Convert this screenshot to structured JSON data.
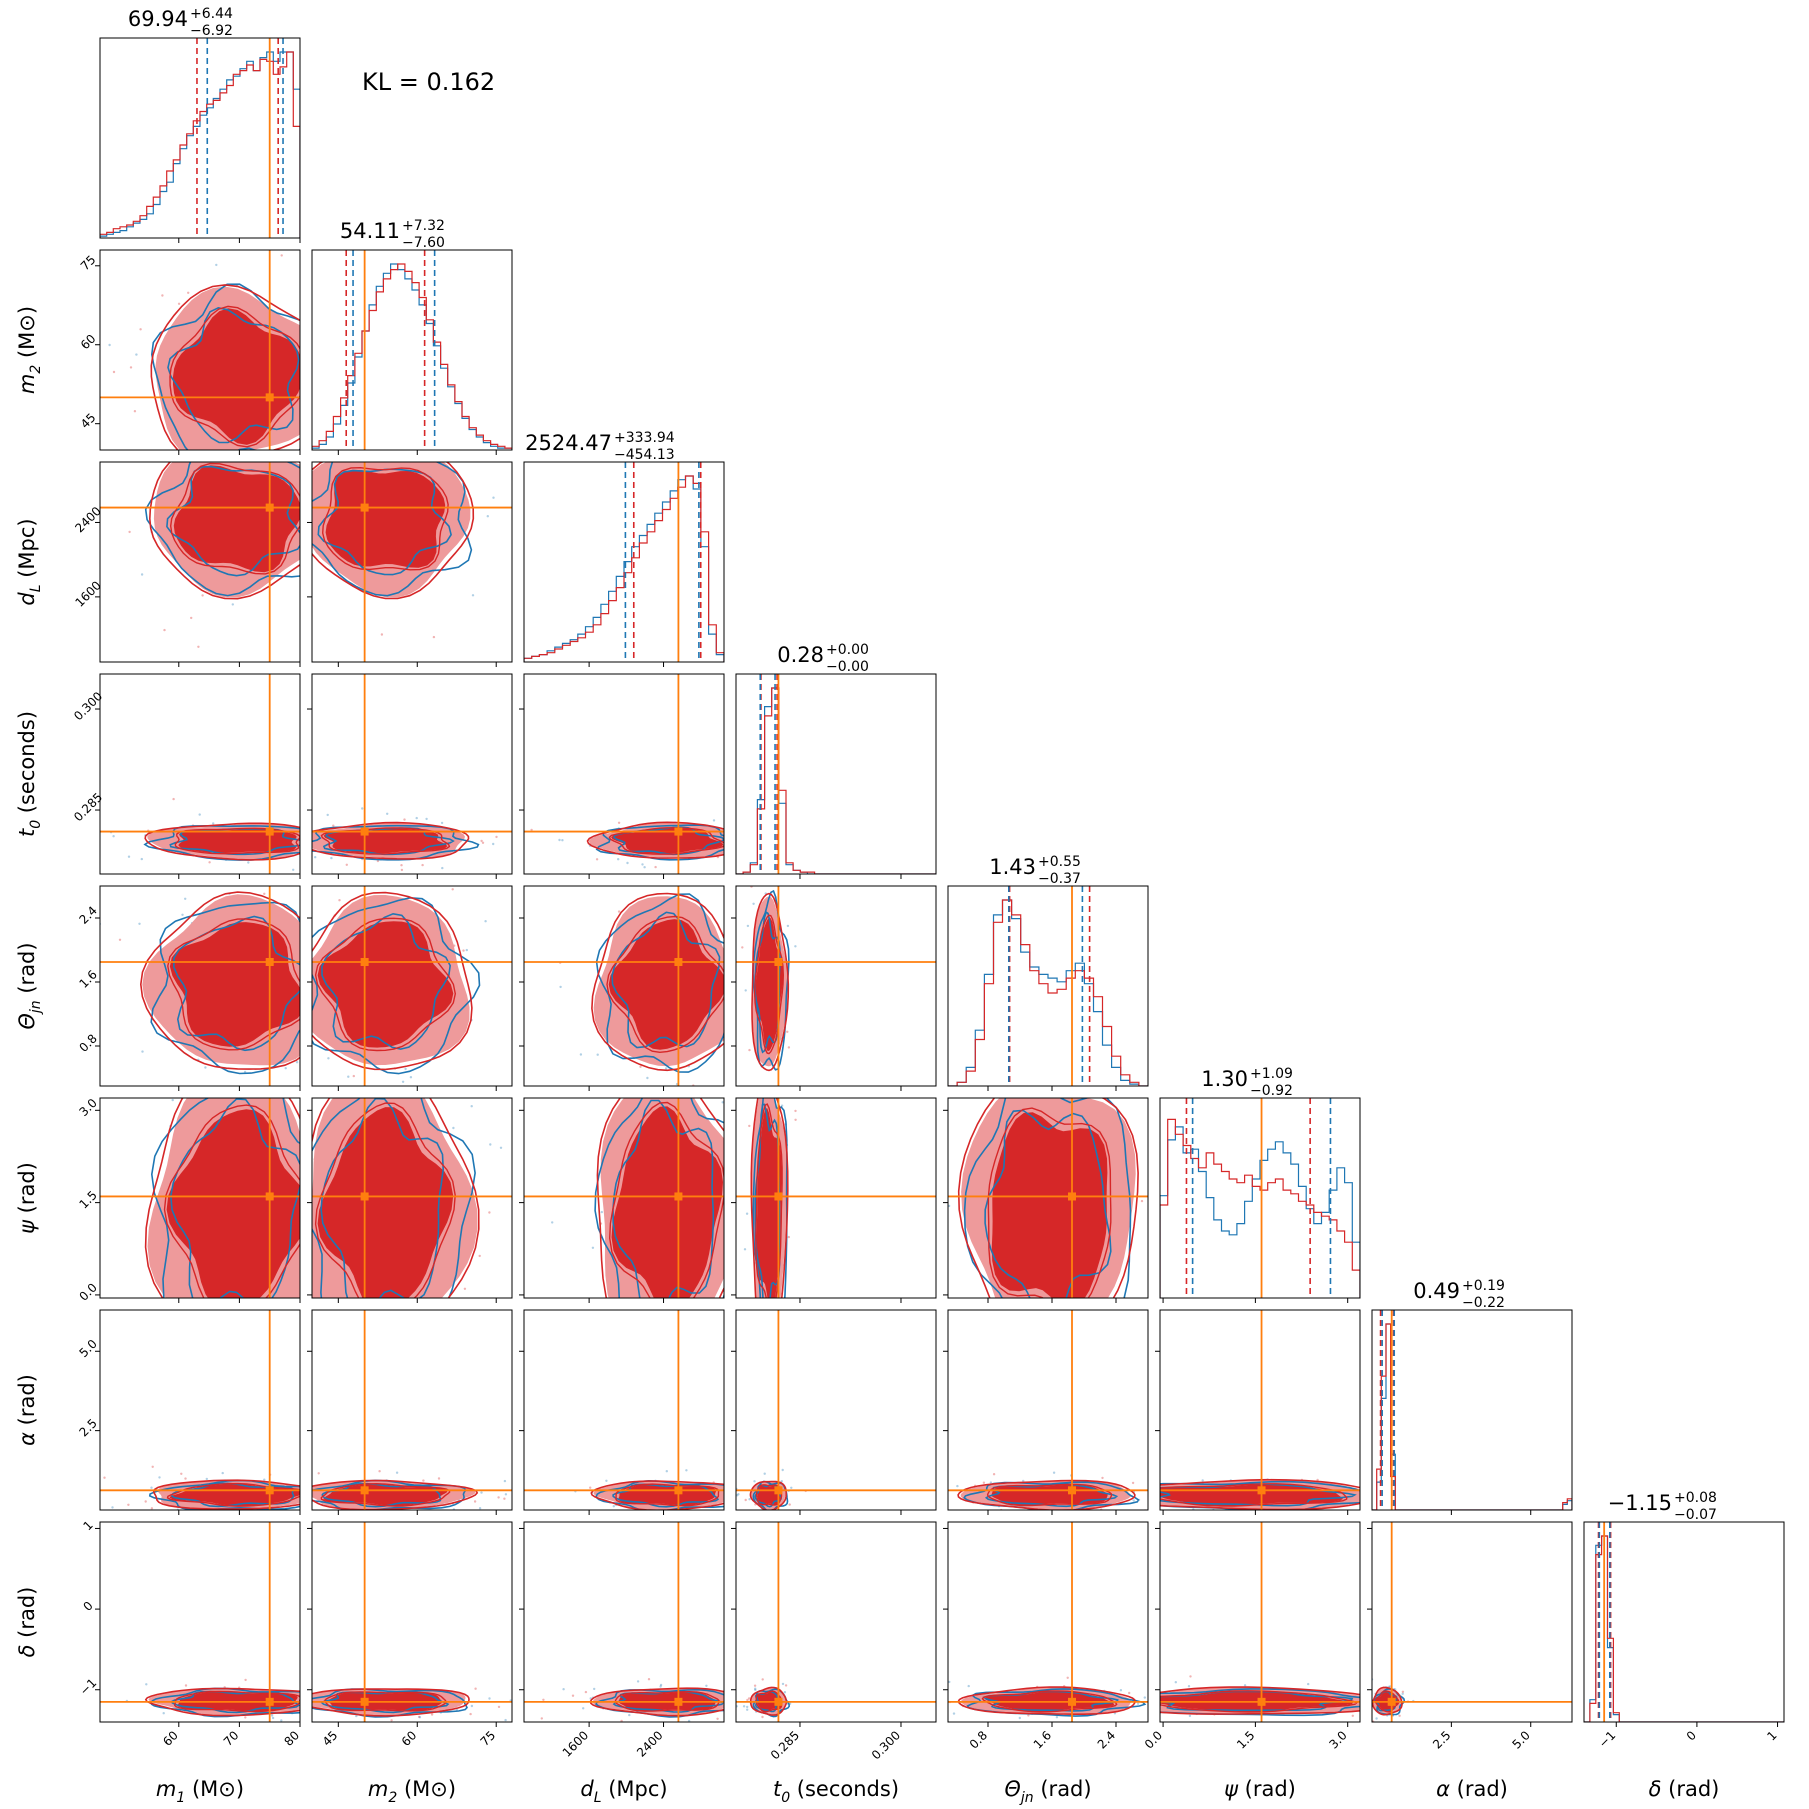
{
  "chart_data": {
    "type": "corner",
    "kl_text": "KL = 0.162",
    "colors": {
      "sample_a": "#d62728",
      "sample_b": "#1f77b4",
      "truth": "#ff7f0e",
      "contour_fill_dark": "#d62728",
      "contour_fill_light": "#ee9a9b"
    },
    "legend": "none",
    "grid": false,
    "series": [
      {
        "color": "#d62728"
      },
      {
        "color": "#1f77b4"
      }
    ],
    "parameters": [
      {
        "key": "m1",
        "label": "m₁ (M⊙)",
        "label_main": "m",
        "label_sub": "1",
        "label_unit": "(M⊙)",
        "title_value": "69.94",
        "title_plus": "+6.44",
        "title_minus": "−6.92",
        "range": [
          47,
          80
        ],
        "ticks": [
          60,
          70,
          80
        ],
        "tick_labels": [
          "60",
          "70",
          "80"
        ],
        "truth": 75,
        "ci_a": [
          63.0,
          76.4
        ],
        "ci_b": [
          64.7,
          77.2
        ],
        "hist_a": [
          0.02,
          0.03,
          0.05,
          0.06,
          0.07,
          0.09,
          0.12,
          0.17,
          0.22,
          0.28,
          0.36,
          0.42,
          0.5,
          0.56,
          0.63,
          0.68,
          0.72,
          0.74,
          0.78,
          0.82,
          0.88,
          0.9,
          0.93,
          0.9,
          0.96,
          0.95,
          0.88,
          0.92,
          1.0,
          0.6
        ],
        "hist_b": [
          0.01,
          0.02,
          0.03,
          0.04,
          0.06,
          0.08,
          0.1,
          0.13,
          0.18,
          0.25,
          0.3,
          0.4,
          0.48,
          0.55,
          0.6,
          0.66,
          0.7,
          0.75,
          0.8,
          0.85,
          0.87,
          0.91,
          0.95,
          0.9,
          0.97,
          1.0,
          0.95,
          1.0,
          1.0,
          0.8
        ]
      },
      {
        "key": "m2",
        "label": "m₂ (M⊙)",
        "label_main": "m",
        "label_sub": "2",
        "label_unit": "(M⊙)",
        "title_value": "54.11",
        "title_plus": "+7.32",
        "title_minus": "−7.60",
        "range": [
          40,
          78
        ],
        "ticks": [
          45,
          60,
          75
        ],
        "tick_labels": [
          "45",
          "60",
          "75"
        ],
        "truth": 50,
        "ci_a": [
          46.5,
          61.4
        ],
        "ci_b": [
          47.8,
          63.3
        ],
        "hist_a": [
          0.02,
          0.05,
          0.1,
          0.18,
          0.28,
          0.4,
          0.52,
          0.64,
          0.75,
          0.85,
          0.92,
          0.97,
          1.0,
          0.96,
          0.9,
          0.82,
          0.7,
          0.58,
          0.46,
          0.35,
          0.26,
          0.18,
          0.12,
          0.08,
          0.05,
          0.03,
          0.02,
          0.01
        ],
        "hist_b": [
          0.01,
          0.03,
          0.07,
          0.14,
          0.24,
          0.36,
          0.5,
          0.64,
          0.78,
          0.88,
          0.95,
          1.0,
          0.97,
          0.92,
          0.86,
          0.78,
          0.68,
          0.56,
          0.44,
          0.34,
          0.25,
          0.17,
          0.11,
          0.07,
          0.04,
          0.02,
          0.01,
          0.01
        ]
      },
      {
        "key": "dL",
        "label": "d_L (Mpc)",
        "label_main": "d",
        "label_sub": "L",
        "label_unit": "(Mpc)",
        "title_value": "2524.47",
        "title_plus": "+333.94",
        "title_minus": "−454.13",
        "range": [
          900,
          3050
        ],
        "ticks": [
          1600,
          2400
        ],
        "tick_labels": [
          "1600",
          "2400"
        ],
        "truth": 2560,
        "ci_a": [
          2080,
          2800
        ],
        "ci_b": [
          1990,
          2780
        ],
        "hist_a": [
          0.02,
          0.03,
          0.04,
          0.05,
          0.07,
          0.09,
          0.11,
          0.13,
          0.16,
          0.2,
          0.26,
          0.33,
          0.4,
          0.48,
          0.56,
          0.64,
          0.7,
          0.76,
          0.82,
          0.88,
          0.94,
          1.0,
          0.96,
          0.7,
          0.2,
          0.05
        ],
        "hist_b": [
          0.02,
          0.03,
          0.04,
          0.06,
          0.08,
          0.1,
          0.12,
          0.15,
          0.19,
          0.24,
          0.31,
          0.38,
          0.46,
          0.54,
          0.62,
          0.68,
          0.74,
          0.8,
          0.86,
          0.92,
          0.98,
          1.0,
          0.93,
          0.62,
          0.15,
          0.04
        ]
      },
      {
        "key": "t0",
        "label": "t₀ (seconds)",
        "label_main": "t",
        "label_sub": "0",
        "label_unit": "(seconds)",
        "title_value": "0.28",
        "title_plus": "+0.00",
        "title_minus": "−0.00",
        "range": [
          0.2755,
          0.3052
        ],
        "ticks": [
          0.285,
          0.3
        ],
        "tick_labels": [
          "0.285",
          "0.300"
        ],
        "truth": 0.2818,
        "ci_a": [
          0.2792,
          0.2816
        ],
        "ci_b": [
          0.2791,
          0.2813
        ],
        "hist_a": [
          0.0,
          0.01,
          0.05,
          0.35,
          0.85,
          1.0,
          0.45,
          0.06,
          0.02,
          0.01,
          0.01,
          0.0,
          0.0,
          0.0,
          0.0,
          0.0,
          0.0,
          0.0,
          0.0,
          0.0,
          0.0,
          0.0,
          0.0,
          0.0,
          0.0,
          0.0,
          0.0,
          0.0
        ],
        "hist_b": [
          0.0,
          0.01,
          0.06,
          0.4,
          0.9,
          1.0,
          0.38,
          0.05,
          0.02,
          0.01,
          0.0,
          0.0,
          0.0,
          0.0,
          0.0,
          0.0,
          0.0,
          0.0,
          0.0,
          0.0,
          0.0,
          0.0,
          0.0,
          0.0,
          0.0,
          0.0,
          0.0,
          0.0
        ]
      },
      {
        "key": "theta_jn",
        "label": "Θ_jn (rad)",
        "label_main": "Θ",
        "label_sub": "jn",
        "label_unit": "(rad)",
        "title_value": "1.43",
        "title_plus": "+0.55",
        "title_minus": "−0.37",
        "range": [
          0.3,
          2.8
        ],
        "ticks": [
          0.8,
          1.6,
          2.4
        ],
        "tick_labels": [
          "0.8",
          "1.6",
          "2.4"
        ],
        "truth": 1.85,
        "ci_a": [
          1.07,
          2.07
        ],
        "ci_b": [
          1.06,
          1.98
        ],
        "hist_a": [
          0.0,
          0.02,
          0.08,
          0.25,
          0.55,
          0.88,
          1.0,
          0.92,
          0.76,
          0.62,
          0.55,
          0.5,
          0.52,
          0.58,
          0.62,
          0.58,
          0.48,
          0.32,
          0.16,
          0.06,
          0.02,
          0.0
        ],
        "hist_b": [
          0.0,
          0.02,
          0.1,
          0.3,
          0.6,
          0.92,
          1.0,
          0.9,
          0.72,
          0.64,
          0.6,
          0.58,
          0.56,
          0.62,
          0.66,
          0.55,
          0.4,
          0.22,
          0.1,
          0.03,
          0.01,
          0.0
        ]
      },
      {
        "key": "psi",
        "label": "ψ (rad)",
        "label_main": "ψ",
        "label_sub": "",
        "label_unit": "(rad)",
        "title_value": "1.30",
        "title_plus": "+1.09",
        "title_minus": "−0.92",
        "range": [
          -0.05,
          3.2
        ],
        "ticks": [
          0.0,
          1.5,
          3.0
        ],
        "tick_labels": [
          "0.0",
          "1.5",
          "3.0"
        ],
        "truth": 1.6,
        "ci_a": [
          0.38,
          2.39
        ],
        "ci_b": [
          0.48,
          2.72
        ],
        "hist_a": [
          0.5,
          0.96,
          0.88,
          0.82,
          0.75,
          0.7,
          0.78,
          0.72,
          0.68,
          0.64,
          0.62,
          0.66,
          0.6,
          0.58,
          0.62,
          0.64,
          0.58,
          0.56,
          0.52,
          0.5,
          0.46,
          0.44,
          0.42,
          0.36,
          0.3,
          0.15
        ],
        "hist_b": [
          0.55,
          0.85,
          0.92,
          0.78,
          0.8,
          0.68,
          0.54,
          0.42,
          0.36,
          0.34,
          0.4,
          0.52,
          0.64,
          0.74,
          0.8,
          0.84,
          0.78,
          0.72,
          0.6,
          0.48,
          0.4,
          0.46,
          0.58,
          0.7,
          0.62,
          0.3
        ]
      },
      {
        "key": "alpha",
        "label": "α (rad)",
        "label_main": "α",
        "label_sub": "",
        "label_unit": "(rad)",
        "title_value": "0.49",
        "title_plus": "+0.19",
        "title_minus": "−0.22",
        "range": [
          0.0,
          6.3
        ],
        "ticks": [
          2.5,
          5.0
        ],
        "tick_labels": [
          "2.5",
          "5.0"
        ],
        "truth": 0.62,
        "ci_a": [
          0.27,
          0.68
        ],
        "ci_b": [
          0.32,
          0.7
        ],
        "hist_a": [
          0.0,
          0.22,
          0.72,
          1.0,
          0.18,
          0.0,
          0.0,
          0.0,
          0.0,
          0.0,
          0.0,
          0.0,
          0.0,
          0.0,
          0.0,
          0.0,
          0.0,
          0.0,
          0.0,
          0.0,
          0.0,
          0.0,
          0.0,
          0.0,
          0.0,
          0.0,
          0.0,
          0.0,
          0.0,
          0.0,
          0.0,
          0.0,
          0.0,
          0.0,
          0.0,
          0.0,
          0.0,
          0.0,
          0.0,
          0.0,
          0.0,
          0.04,
          0.06
        ],
        "hist_b": [
          0.0,
          0.15,
          0.6,
          1.0,
          0.3,
          0.0,
          0.0,
          0.0,
          0.0,
          0.0,
          0.0,
          0.0,
          0.0,
          0.0,
          0.0,
          0.0,
          0.0,
          0.0,
          0.0,
          0.0,
          0.0,
          0.0,
          0.0,
          0.0,
          0.0,
          0.0,
          0.0,
          0.0,
          0.0,
          0.0,
          0.0,
          0.0,
          0.0,
          0.0,
          0.0,
          0.0,
          0.0,
          0.0,
          0.0,
          0.0,
          0.0,
          0.03,
          0.05
        ]
      },
      {
        "key": "delta",
        "label": "δ (rad)",
        "label_main": "δ",
        "label_sub": "",
        "label_unit": "(rad)",
        "title_value": "−1.15",
        "title_plus": "+0.08",
        "title_minus": "−0.07",
        "range": [
          -1.4,
          1.08
        ],
        "ticks": [
          -1,
          0,
          1
        ],
        "tick_labels": [
          "−1",
          "0",
          "1"
        ],
        "truth": -1.15,
        "ci_a": [
          -1.22,
          -1.07
        ],
        "ci_b": [
          -1.21,
          -1.08
        ],
        "hist_a": [
          0.0,
          0.1,
          0.9,
          1.0,
          0.45,
          0.05,
          0.0,
          0.0,
          0.0,
          0.0,
          0.0,
          0.0,
          0.0,
          0.0,
          0.0,
          0.0,
          0.0,
          0.0,
          0.0,
          0.0,
          0.0,
          0.0,
          0.0,
          0.0,
          0.0,
          0.0,
          0.0,
          0.0,
          0.0,
          0.0,
          0.0,
          0.0,
          0.0,
          0.0
        ],
        "hist_b": [
          0.0,
          0.12,
          0.95,
          1.0,
          0.4,
          0.04,
          0.0,
          0.0,
          0.0,
          0.0,
          0.0,
          0.0,
          0.0,
          0.0,
          0.0,
          0.0,
          0.0,
          0.0,
          0.0,
          0.0,
          0.0,
          0.0,
          0.0,
          0.0,
          0.0,
          0.0,
          0.0,
          0.0,
          0.0,
          0.0,
          0.0,
          0.0,
          0.0,
          0.0
        ]
      }
    ]
  }
}
